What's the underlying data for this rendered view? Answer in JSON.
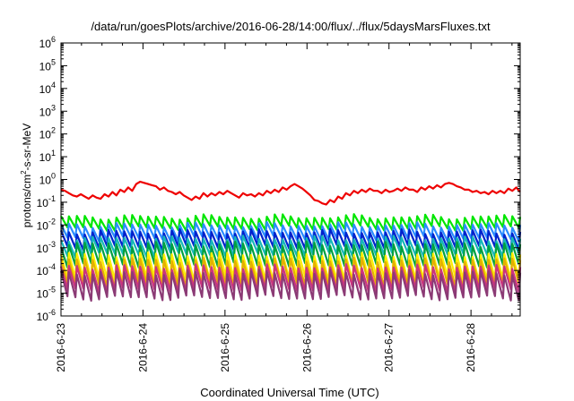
{
  "chart_data": {
    "type": "line",
    "title": "/data/run/goesPlots/archive/2016-06-28/14:00/flux/../flux/5daysMarsFluxes.txt",
    "xlabel": "Coordinated Universal Time (UTC)",
    "ylabel_parts": [
      "protons/cm",
      "2",
      "-s-sr-MeV"
    ],
    "y_scale": "log",
    "ylim_exp": [
      -6,
      6
    ],
    "y_tick_exponents": [
      6,
      5,
      4,
      3,
      2,
      1,
      0,
      -1,
      -2,
      -3,
      -4,
      -5,
      -6
    ],
    "y_tick_base": "10",
    "x_day_range": [
      0,
      5.6
    ],
    "x_tick_days": [
      0,
      1,
      2,
      3,
      4,
      5
    ],
    "x_tick_labels": [
      "2016-6-23",
      "2016-6-24",
      "2016-6-25",
      "2016-6-26",
      "2016-6-27",
      "2016-6-28"
    ],
    "grid": false,
    "series": [
      {
        "color": "#ee0000",
        "logvalues": [
          -0.45,
          -0.5,
          -0.6,
          -0.7,
          -0.75,
          -0.65,
          -0.75,
          -0.85,
          -0.7,
          -0.8,
          -0.85,
          -0.65,
          -0.75,
          -0.55,
          -0.7,
          -0.45,
          -0.55,
          -0.35,
          -0.5,
          -0.2,
          -0.1,
          -0.15,
          -0.2,
          -0.25,
          -0.3,
          -0.45,
          -0.35,
          -0.5,
          -0.55,
          -0.65,
          -0.55,
          -0.7,
          -0.8,
          -0.9,
          -0.75,
          -0.85,
          -0.6,
          -0.75,
          -0.6,
          -0.7,
          -0.55,
          -0.65,
          -0.5,
          -0.6,
          -0.7,
          -0.8,
          -0.6,
          -0.7,
          -0.65,
          -0.75,
          -0.6,
          -0.7,
          -0.5,
          -0.6,
          -0.45,
          -0.55,
          -0.35,
          -0.45,
          -0.3,
          -0.2,
          -0.3,
          -0.4,
          -0.55,
          -0.7,
          -0.9,
          -0.95,
          -1.05,
          -1.1,
          -0.9,
          -1.0,
          -0.75,
          -0.85,
          -0.6,
          -0.7,
          -0.5,
          -0.6,
          -0.45,
          -0.55,
          -0.4,
          -0.5,
          -0.5,
          -0.6,
          -0.45,
          -0.55,
          -0.5,
          -0.4,
          -0.5,
          -0.35,
          -0.45,
          -0.45,
          -0.55,
          -0.35,
          -0.45,
          -0.3,
          -0.4,
          -0.25,
          -0.35,
          -0.2,
          -0.15,
          -0.2,
          -0.3,
          -0.35,
          -0.45,
          -0.45,
          -0.55,
          -0.5,
          -0.6,
          -0.55,
          -0.65,
          -0.5,
          -0.6,
          -0.5,
          -0.6,
          -0.4,
          -0.5,
          -0.35,
          -0.55
        ]
      },
      {
        "color": "#00e600",
        "base": -1.65,
        "amp": 0.5
      },
      {
        "color": "#2a8cff",
        "base": -2.0,
        "amp": 0.6
      },
      {
        "color": "#0022cc",
        "base": -2.3,
        "amp": 0.7
      },
      {
        "color": "#16b8b8",
        "base": -2.6,
        "amp": 0.7
      },
      {
        "color": "#00a040",
        "base": -2.85,
        "amp": 0.9
      },
      {
        "color": "#ffee00",
        "base": -3.3,
        "amp": 1.1
      },
      {
        "color": "#e4b000",
        "base": -3.55,
        "amp": 1.1
      },
      {
        "color": "#cc3380",
        "base": -3.85,
        "amp": 1.0
      },
      {
        "color": "#8b3a75",
        "base": -4.1,
        "amp": 1.1
      }
    ],
    "periodic_cycles": 58
  }
}
